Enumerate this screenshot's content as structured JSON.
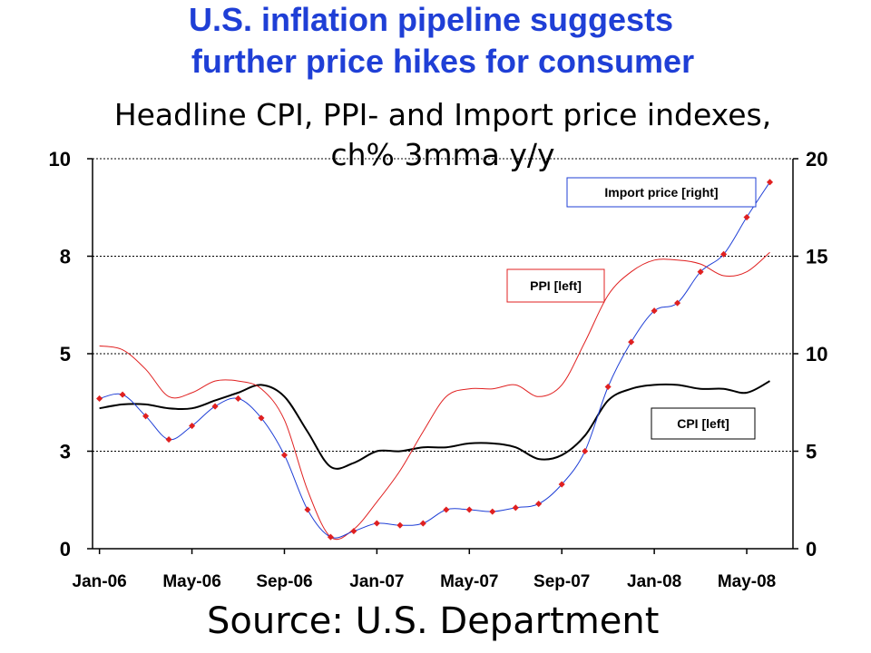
{
  "title": {
    "line1": "U.S. inflation pipeline suggests",
    "line2": "further price hikes for consumer"
  },
  "subtitle": {
    "line1": "Headline CPI, PPI- and Import price indexes,",
    "line2": "ch% 3mma y/y"
  },
  "source": "Source: U.S. Department",
  "colors": {
    "cpi": "#000000",
    "ppi": "#e02020",
    "import": "#1f3fd6",
    "import_marker": "#e02020",
    "title": "#1f3fd6"
  },
  "chart_data": {
    "type": "line",
    "x": [
      "Jan-06",
      "Feb-06",
      "Mar-06",
      "Apr-06",
      "May-06",
      "Jun-06",
      "Jul-06",
      "Aug-06",
      "Sep-06",
      "Oct-06",
      "Nov-06",
      "Dec-06",
      "Jan-07",
      "Feb-07",
      "Mar-07",
      "Apr-07",
      "May-07",
      "Jun-07",
      "Jul-07",
      "Aug-07",
      "Sep-07",
      "Oct-07",
      "Nov-07",
      "Dec-07",
      "Jan-08",
      "Feb-08",
      "Mar-08",
      "Apr-08",
      "May-08",
      "Jun-08"
    ],
    "x_tick_labels": [
      "Jan-06",
      "May-06",
      "Sep-06",
      "Jan-07",
      "May-07",
      "Sep-07",
      "Jan-08",
      "May-08"
    ],
    "y_left": {
      "ticks": [
        0,
        3,
        5,
        8,
        10
      ],
      "range": [
        0,
        10
      ]
    },
    "y_right": {
      "ticks": [
        0,
        5,
        10,
        15,
        20
      ],
      "range": [
        0,
        20
      ]
    },
    "series": [
      {
        "name": "CPI [left]",
        "axis": "left",
        "values": [
          3.6,
          3.7,
          3.7,
          3.6,
          3.6,
          3.8,
          4.0,
          4.2,
          3.9,
          3.0,
          2.1,
          2.2,
          2.5,
          2.5,
          2.6,
          2.6,
          2.7,
          2.7,
          2.6,
          2.3,
          2.4,
          2.9,
          3.8,
          4.1,
          4.2,
          4.2,
          4.1,
          4.1,
          4.0,
          4.3
        ]
      },
      {
        "name": "PPI [left]",
        "axis": "left",
        "values": [
          5.2,
          5.1,
          4.6,
          3.9,
          4.0,
          4.3,
          4.3,
          4.1,
          3.3,
          1.5,
          0.3,
          0.5,
          1.2,
          2.0,
          3.0,
          3.9,
          4.1,
          4.1,
          4.2,
          3.9,
          4.2,
          5.3,
          6.5,
          7.1,
          7.4,
          7.4,
          7.3,
          7.0,
          7.1,
          7.6
        ]
      },
      {
        "name": "Import price [right]",
        "axis": "right",
        "values": [
          7.7,
          7.9,
          6.8,
          5.6,
          6.3,
          7.3,
          7.7,
          6.7,
          4.8,
          2.0,
          0.6,
          0.9,
          1.3,
          1.2,
          1.3,
          2.0,
          2.0,
          1.9,
          2.1,
          2.3,
          3.3,
          5.0,
          8.3,
          10.6,
          12.2,
          12.6,
          14.2,
          15.1,
          17.0,
          18.8
        ]
      }
    ],
    "legend_labels": [
      {
        "series": "Import price [right]",
        "text": "Import price [right]"
      },
      {
        "series": "PPI [left]",
        "text": "PPI [left]"
      },
      {
        "series": "CPI [left]",
        "text": "CPI [left]"
      }
    ],
    "grid": true
  }
}
